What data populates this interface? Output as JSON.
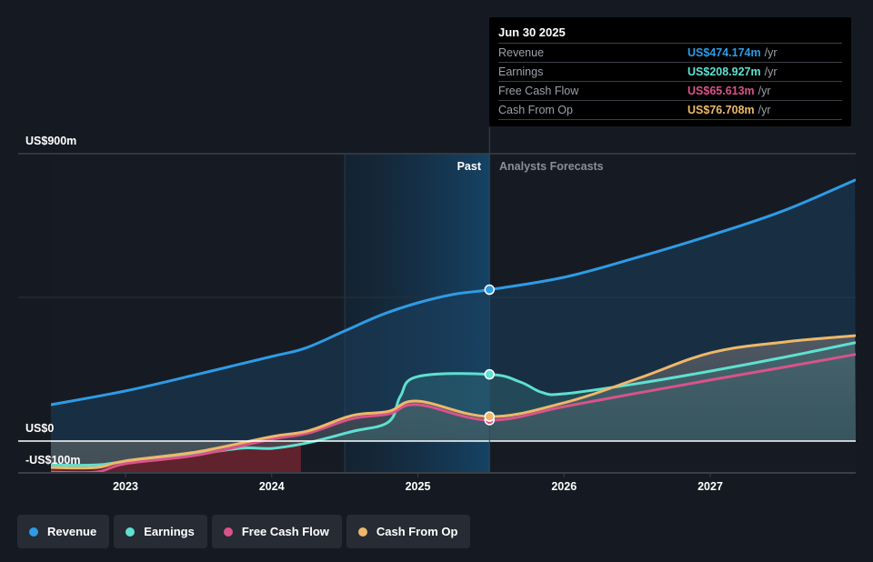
{
  "tooltip": {
    "date": "Jun 30 2025",
    "rows": [
      {
        "label": "Revenue",
        "value": "US$474.174m",
        "unit": "/yr",
        "color": "#2f9be5"
      },
      {
        "label": "Earnings",
        "value": "US$208.927m",
        "unit": "/yr",
        "color": "#5fe0d0"
      },
      {
        "label": "Free Cash Flow",
        "value": "US$65.613m",
        "unit": "/yr",
        "color": "#d9538a"
      },
      {
        "label": "Cash From Op",
        "value": "US$76.708m",
        "unit": "/yr",
        "color": "#eeb86a"
      }
    ]
  },
  "legend": [
    {
      "label": "Revenue",
      "color": "#2f9be5"
    },
    {
      "label": "Earnings",
      "color": "#5fe0d0"
    },
    {
      "label": "Free Cash Flow",
      "color": "#d9538a"
    },
    {
      "label": "Cash From Op",
      "color": "#eeb86a"
    }
  ],
  "chart_data": {
    "type": "line",
    "title": "",
    "xlabel": "",
    "ylabel": "",
    "y_tick_labels": [
      "US$900m",
      "US$0",
      "-US$100m"
    ],
    "y_ticks": [
      900,
      0,
      -100
    ],
    "ylim": [
      -100,
      900
    ],
    "xlim": [
      2022.49,
      2027.99
    ],
    "x_tick_labels": [
      "2023",
      "2024",
      "2025",
      "2026",
      "2027"
    ],
    "x_ticks": [
      2023,
      2024,
      2025,
      2026,
      2027
    ],
    "past_label": "Past",
    "forecast_label": "Analysts Forecasts",
    "past_region_start": 2024.5,
    "divider_x": 2025.49,
    "grid": true,
    "legend_position": "bottom-left",
    "series": [
      {
        "name": "Revenue",
        "color": "#2f9be5",
        "x": [
          2022.49,
          2023.0,
          2023.5,
          2024.0,
          2024.23,
          2024.5,
          2024.75,
          2025.0,
          2025.25,
          2025.49,
          2026.0,
          2026.5,
          2027.0,
          2027.5,
          2027.99
        ],
        "y": [
          114,
          157,
          210,
          265,
          291,
          345,
          395,
          433,
          460,
          474,
          513,
          575,
          644,
          721,
          817
        ]
      },
      {
        "name": "Earnings",
        "color": "#5fe0d0",
        "x": [
          2022.49,
          2022.8,
          2023.0,
          2023.5,
          2023.8,
          2024.0,
          2024.25,
          2024.55,
          2024.8,
          2024.88,
          2025.0,
          2025.49,
          2025.7,
          2025.85,
          2026.0,
          2026.5,
          2027.0,
          2027.5,
          2027.99
        ],
        "y": [
          -75,
          -75,
          -64,
          -40,
          -22,
          -23,
          -5,
          30,
          60,
          140,
          202,
          209,
          185,
          152,
          148,
          180,
          219,
          262,
          308
        ]
      },
      {
        "name": "Free Cash Flow",
        "color": "#d9538a",
        "x": [
          2022.49,
          2022.8,
          2023.0,
          2023.5,
          2024.0,
          2024.25,
          2024.55,
          2024.8,
          2025.0,
          2025.49,
          2026.0,
          2026.5,
          2027.0,
          2027.5,
          2027.99
        ],
        "y": [
          -97,
          -97,
          -71,
          -43,
          6,
          25,
          70,
          85,
          114,
          65.613,
          108,
          150,
          191,
          231,
          271
        ]
      },
      {
        "name": "Cash From Op",
        "color": "#eeb86a",
        "x": [
          2022.49,
          2022.8,
          2023.0,
          2023.5,
          2024.0,
          2024.25,
          2024.55,
          2024.8,
          2025.0,
          2025.49,
          2026.0,
          2026.5,
          2027.0,
          2027.5,
          2027.99
        ],
        "y": [
          -83,
          -83,
          -62,
          -33,
          14,
          32,
          80,
          93,
          125,
          76.708,
          120,
          195,
          276,
          310,
          330
        ]
      }
    ],
    "highlight_points": [
      {
        "series": "Revenue",
        "x": 2025.49,
        "y": 474.174
      },
      {
        "series": "Earnings",
        "x": 2025.49,
        "y": 208.927
      },
      {
        "series": "Free Cash Flow",
        "x": 2025.49,
        "y": 65.613
      },
      {
        "series": "Cash From Op",
        "x": 2025.49,
        "y": 76.708
      }
    ]
  }
}
